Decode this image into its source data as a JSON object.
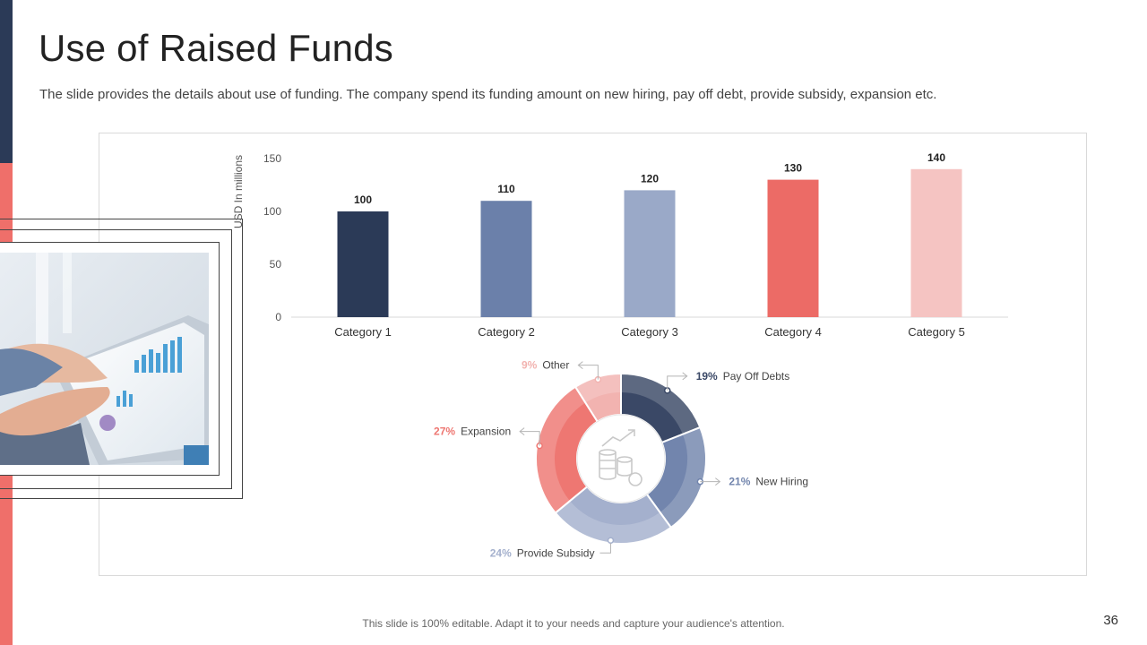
{
  "slide": {
    "title": "Use of Raised Funds",
    "subtitle": "The slide provides the details about use of funding. The company spend its funding amount on new hiring, pay off debt, provide subsidy, expansion etc.",
    "footer": "This slide is 100% editable. Adapt it to your needs and capture your audience's attention.",
    "page_number": "36"
  },
  "colors": {
    "navy": "#2b3a57",
    "slate": "#6b80aa",
    "periwinkle": "#9aa9c8",
    "coral": "#ec6b66",
    "blush": "#f5c4c2"
  },
  "chart_data": [
    {
      "type": "bar",
      "title": "",
      "xlabel": "",
      "ylabel": "USD In millions",
      "categories": [
        "Category 1",
        "Category 2",
        "Category 3",
        "Category 4",
        "Category 5"
      ],
      "values": [
        100,
        110,
        120,
        130,
        140
      ],
      "ylim": [
        0,
        150
      ],
      "yticks": [
        0,
        50,
        100,
        150
      ],
      "bar_colors": [
        "#2b3a57",
        "#6b80aa",
        "#9aa9c8",
        "#ec6b66",
        "#f5c4c2"
      ],
      "grid": false,
      "data_labels": true
    },
    {
      "type": "pie",
      "donut": true,
      "slices": [
        {
          "label": "Pay Off Debts",
          "value": 19,
          "pct_label": "19%",
          "color": "#3a4866"
        },
        {
          "label": "New Hiring",
          "value": 21,
          "pct_label": "21%",
          "color": "#7285ad"
        },
        {
          "label": "Provide Subsidy",
          "value": 24,
          "pct_label": "24%",
          "color": "#a4b0cd"
        },
        {
          "label": "Expansion",
          "value": 27,
          "pct_label": "27%",
          "color": "#ee7772"
        },
        {
          "label": "Other",
          "value": 9,
          "pct_label": "9%",
          "color": "#f2b3b0"
        }
      ],
      "center_icon": "coins-dollar-icon"
    }
  ]
}
